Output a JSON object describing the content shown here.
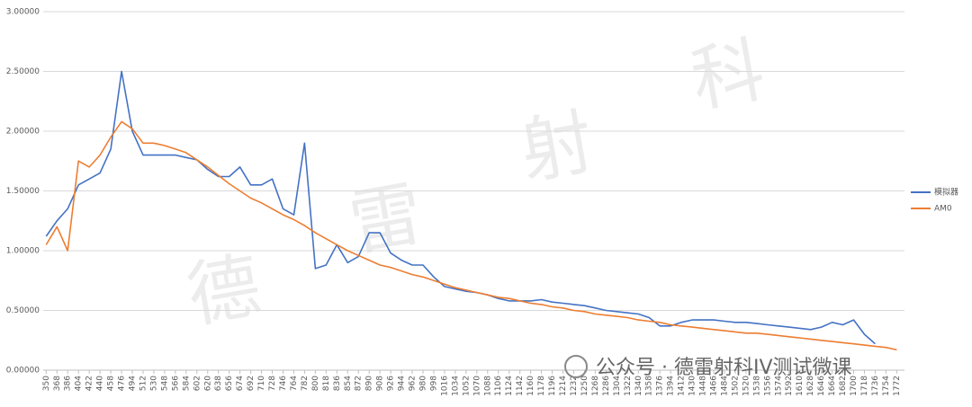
{
  "chart_data": {
    "type": "line",
    "x": [
      350,
      368,
      386,
      404,
      422,
      440,
      458,
      476,
      494,
      512,
      530,
      548,
      566,
      584,
      602,
      620,
      638,
      656,
      674,
      692,
      710,
      728,
      746,
      764,
      782,
      800,
      818,
      836,
      854,
      872,
      890,
      908,
      926,
      944,
      962,
      980,
      998,
      1016,
      1034,
      1052,
      1070,
      1088,
      1106,
      1124,
      1142,
      1160,
      1178,
      1196,
      1214,
      1232,
      1250,
      1268,
      1286,
      1304,
      1322,
      1340,
      1358,
      1376,
      1394,
      1412,
      1430,
      1448,
      1466,
      1484,
      1502,
      1520,
      1538,
      1556,
      1574,
      1592,
      1610,
      1628,
      1646,
      1664,
      1682,
      1700,
      1718,
      1736,
      1754,
      1772
    ],
    "series": [
      {
        "name": "模拟器",
        "color": "#4472c4",
        "values": [
          1.12,
          1.25,
          1.35,
          1.55,
          1.6,
          1.65,
          1.85,
          2.5,
          2.0,
          1.8,
          1.8,
          1.8,
          1.8,
          1.78,
          1.76,
          1.68,
          1.62,
          1.62,
          1.7,
          1.55,
          1.55,
          1.6,
          1.35,
          1.3,
          1.9,
          0.85,
          0.88,
          1.05,
          0.9,
          0.95,
          1.15,
          1.15,
          0.98,
          0.92,
          0.88,
          0.88,
          0.78,
          0.7,
          0.68,
          0.66,
          0.65,
          0.63,
          0.6,
          0.58,
          0.58,
          0.58,
          0.59,
          0.57,
          0.56,
          0.55,
          0.54,
          0.52,
          0.5,
          0.49,
          0.48,
          0.47,
          0.44,
          0.37,
          0.37,
          0.4,
          0.42,
          0.42,
          0.42,
          0.41,
          0.4,
          0.4,
          0.39,
          0.38,
          0.37,
          0.36,
          0.35,
          0.34,
          0.36,
          0.4,
          0.38,
          0.42,
          0.3,
          0.22,
          null,
          null
        ]
      },
      {
        "name": "AM0",
        "color": "#ed7d31",
        "values": [
          1.05,
          1.2,
          1.0,
          1.75,
          1.7,
          1.8,
          1.95,
          2.08,
          2.02,
          1.9,
          1.9,
          1.88,
          1.85,
          1.82,
          1.76,
          1.7,
          1.63,
          1.56,
          1.5,
          1.44,
          1.4,
          1.35,
          1.3,
          1.26,
          1.21,
          1.15,
          1.1,
          1.05,
          1.0,
          0.96,
          0.92,
          0.88,
          0.86,
          0.83,
          0.8,
          0.78,
          0.75,
          0.72,
          0.69,
          0.67,
          0.65,
          0.63,
          0.61,
          0.6,
          0.58,
          0.56,
          0.55,
          0.53,
          0.52,
          0.5,
          0.49,
          0.47,
          0.46,
          0.45,
          0.44,
          0.42,
          0.41,
          0.4,
          0.38,
          0.37,
          0.36,
          0.35,
          0.34,
          0.33,
          0.32,
          0.31,
          0.31,
          0.3,
          0.29,
          0.28,
          0.27,
          0.26,
          0.25,
          0.24,
          0.23,
          0.22,
          0.21,
          0.2,
          0.19,
          0.17
        ]
      }
    ],
    "xlim": [
      345,
      1785
    ],
    "xticks": [
      350,
      368,
      386,
      404,
      422,
      440,
      458,
      476,
      494,
      512,
      530,
      548,
      566,
      584,
      602,
      620,
      638,
      656,
      674,
      692,
      710,
      728,
      746,
      764,
      782,
      800,
      818,
      836,
      854,
      872,
      890,
      908,
      926,
      944,
      962,
      980,
      998,
      1016,
      1034,
      1052,
      1070,
      1088,
      1106,
      1124,
      1142,
      1160,
      1178,
      1196,
      1214,
      1232,
      1250,
      1268,
      1286,
      1304,
      1322,
      1340,
      1358,
      1376,
      1394,
      1412,
      1430,
      1448,
      1466,
      1484,
      1502,
      1520,
      1538,
      1556,
      1574,
      1592,
      1610,
      1628,
      1646,
      1664,
      1682,
      1700,
      1718,
      1736,
      1754,
      1772
    ],
    "ylim": [
      0,
      3
    ],
    "yticks": [
      {
        "value": 0,
        "label": "0.00000"
      },
      {
        "value": 0.5,
        "label": "0.50000"
      },
      {
        "value": 1,
        "label": "1.00000"
      },
      {
        "value": 1.5,
        "label": "1.50000"
      },
      {
        "value": 2,
        "label": "2.00000"
      },
      {
        "value": 2.5,
        "label": "2.50000"
      },
      {
        "value": 3,
        "label": "3.00000"
      }
    ],
    "grid": true,
    "legend": "right",
    "watermark": {
      "chars": [
        "德",
        "雷",
        "射",
        "科"
      ],
      "account": "公众号 · 德雷射科IV测试微课"
    }
  }
}
